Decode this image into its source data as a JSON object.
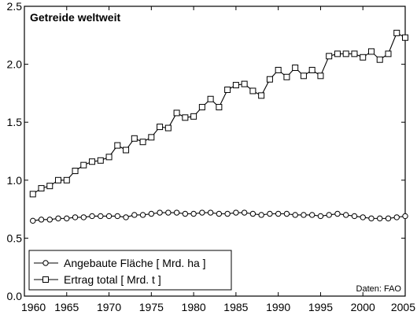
{
  "chart_data": {
    "type": "line",
    "title": "Getreide weltweit",
    "source": "Daten: FAO",
    "xlim": [
      1960,
      2005
    ],
    "ylim": [
      0.0,
      2.5
    ],
    "xticks": [
      "1960",
      "1965",
      "1970",
      "1975",
      "1980",
      "1985",
      "1990",
      "1995",
      "2000",
      "2005"
    ],
    "yticks": [
      "0.0",
      "0.5",
      "1.0",
      "1.5",
      "2.0",
      "2.5"
    ],
    "grid": false,
    "legend_position": "bottom-left",
    "x": [
      1961,
      1962,
      1963,
      1964,
      1965,
      1966,
      1967,
      1968,
      1969,
      1970,
      1971,
      1972,
      1973,
      1974,
      1975,
      1976,
      1977,
      1978,
      1979,
      1980,
      1981,
      1982,
      1983,
      1984,
      1985,
      1986,
      1987,
      1988,
      1989,
      1990,
      1991,
      1992,
      1993,
      1994,
      1995,
      1996,
      1997,
      1998,
      1999,
      2000,
      2001,
      2002,
      2003,
      2004,
      2005
    ],
    "series": [
      {
        "name": "Angebaute Fläche [ Mrd. ha ]",
        "marker": "circle",
        "values": [
          0.65,
          0.66,
          0.66,
          0.67,
          0.67,
          0.68,
          0.68,
          0.69,
          0.69,
          0.69,
          0.69,
          0.68,
          0.7,
          0.7,
          0.71,
          0.72,
          0.72,
          0.72,
          0.71,
          0.71,
          0.72,
          0.72,
          0.71,
          0.71,
          0.72,
          0.72,
          0.71,
          0.7,
          0.71,
          0.71,
          0.71,
          0.7,
          0.7,
          0.7,
          0.69,
          0.7,
          0.71,
          0.7,
          0.69,
          0.68,
          0.67,
          0.67,
          0.67,
          0.68,
          0.69
        ]
      },
      {
        "name": "Ertrag total [ Mrd. t ]",
        "marker": "square",
        "values": [
          0.88,
          0.93,
          0.95,
          1.0,
          1.0,
          1.08,
          1.13,
          1.16,
          1.17,
          1.2,
          1.3,
          1.26,
          1.36,
          1.33,
          1.37,
          1.46,
          1.45,
          1.58,
          1.54,
          1.55,
          1.63,
          1.7,
          1.63,
          1.78,
          1.82,
          1.83,
          1.77,
          1.73,
          1.87,
          1.95,
          1.89,
          1.97,
          1.9,
          1.95,
          1.9,
          2.07,
          2.09,
          2.09,
          2.09,
          2.06,
          2.11,
          2.04,
          2.09,
          2.27,
          2.23
        ]
      }
    ]
  }
}
